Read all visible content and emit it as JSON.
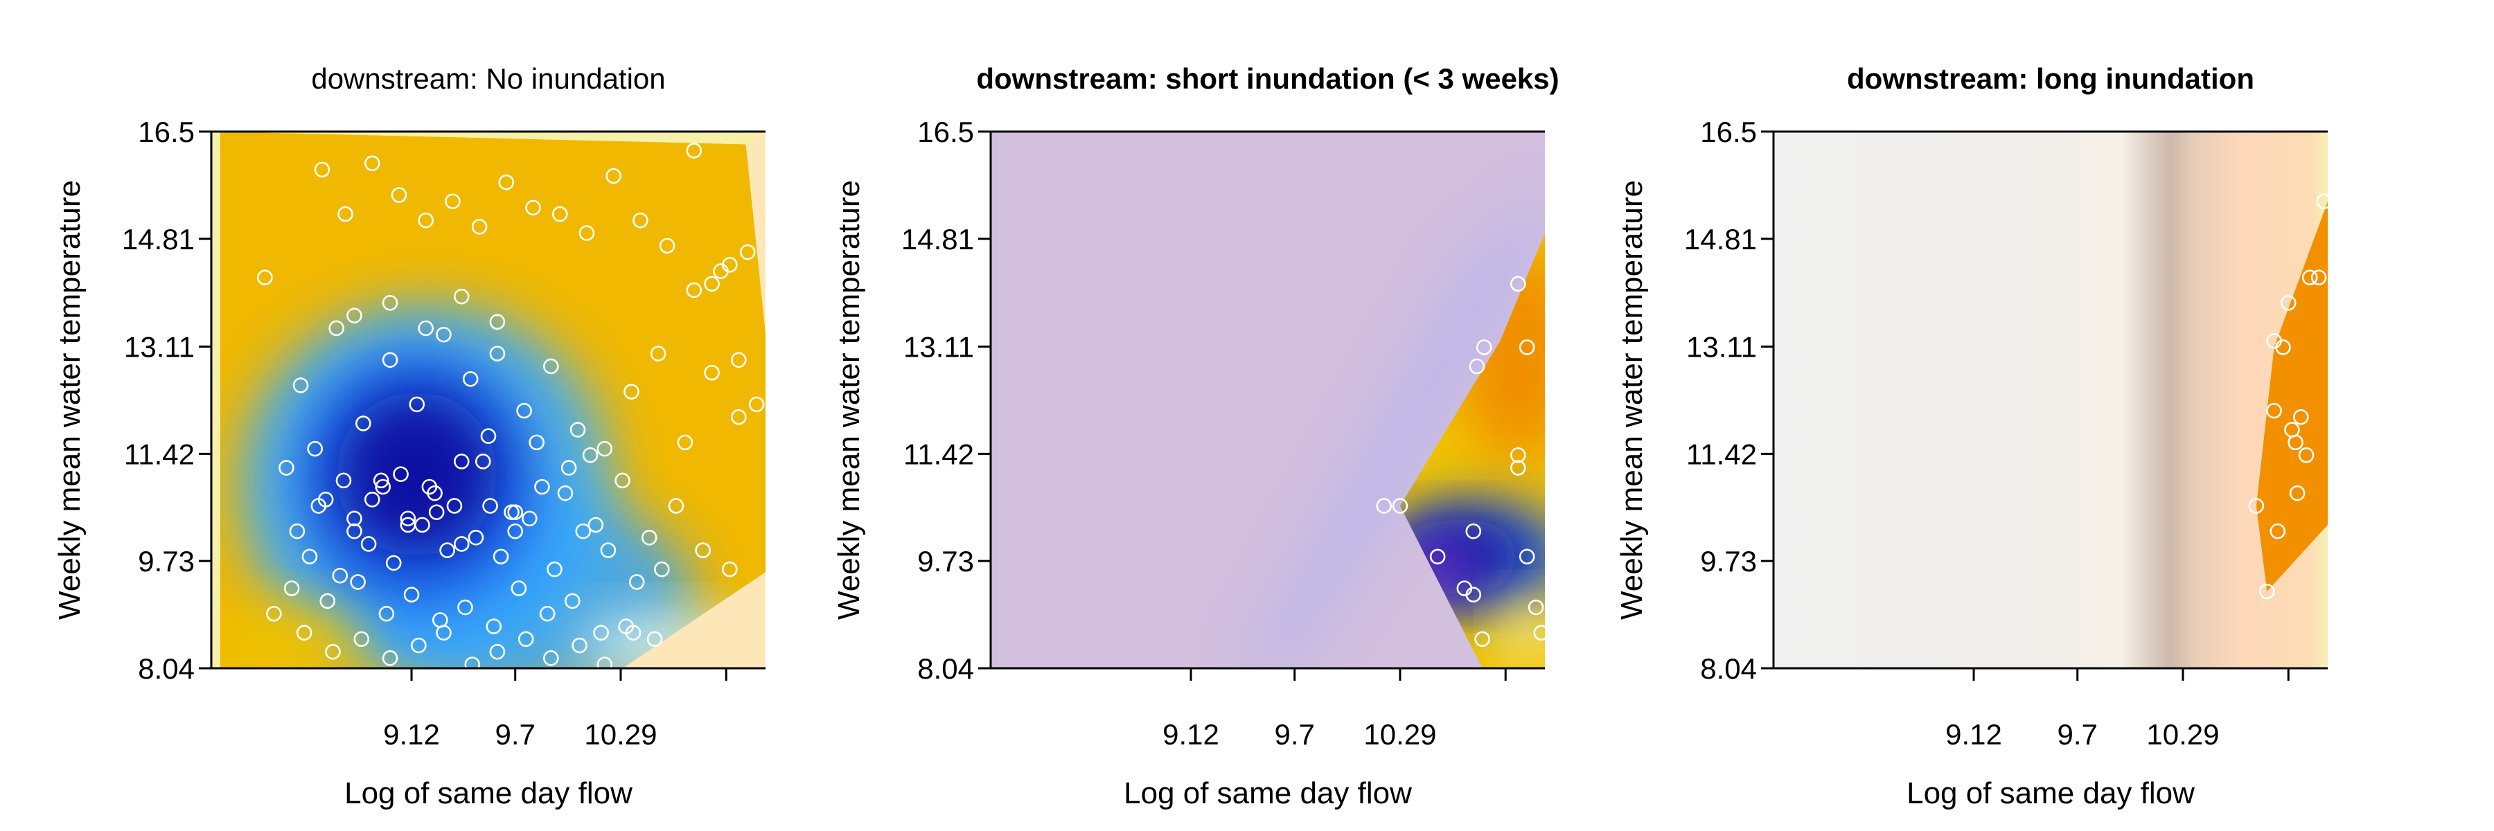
{
  "chart_data": [
    {
      "type": "heatmap",
      "title": "downstream: No inundation",
      "title_bold": false,
      "xlabel": "Log of same day flow",
      "ylabel": "Weekly mean water temperature",
      "xlim": [
        8.0,
        11.1
      ],
      "ylim": [
        8.04,
        16.5
      ],
      "x_ticks": [
        9.12,
        9.7,
        10.29,
        10.88
      ],
      "x_tick_labels": [
        "9.12",
        "9.7",
        "10.29",
        ""
      ],
      "y_ticks": [
        8.04,
        9.73,
        11.42,
        13.11,
        14.81,
        16.5
      ],
      "y_tick_labels": [
        "8.04",
        "9.73",
        "11.42",
        "13.11",
        "14.81",
        "16.5"
      ],
      "surface": {
        "background": "#f7f0a8",
        "hull_color": "#f0b800",
        "hull": [
          [
            8.05,
            16.5
          ],
          [
            10.99,
            16.3
          ],
          [
            11.23,
            9.8
          ],
          [
            10.3,
            8.04
          ],
          [
            8.05,
            8.04
          ]
        ],
        "outside_hull": [
          [
            10.3,
            8.04
          ],
          [
            11.1,
            8.04
          ],
          [
            11.1,
            16.5
          ],
          [
            10.99,
            16.3
          ],
          [
            11.23,
            9.8
          ]
        ],
        "outside_hull_color": "#fde7b8",
        "blobs": [
          {
            "cx": 9.2,
            "cy": 10.9,
            "rx": 1.05,
            "ry": 2.9,
            "color": "#3fb0ff",
            "opacity": 0.9
          },
          {
            "cx": 9.75,
            "cy": 9.2,
            "rx": 0.95,
            "ry": 1.6,
            "color": "#35a6ff",
            "opacity": 0.85
          },
          {
            "cx": 9.15,
            "cy": 11.0,
            "rx": 0.7,
            "ry": 2.1,
            "color": "#1a66e8",
            "opacity": 0.9
          },
          {
            "cx": 9.15,
            "cy": 11.1,
            "rx": 0.45,
            "ry": 1.3,
            "color": "#0a10a0",
            "opacity": 0.95
          },
          {
            "cx": 8.4,
            "cy": 8.4,
            "rx": 0.45,
            "ry": 0.6,
            "color": "#f0c300",
            "opacity": 0.9
          },
          {
            "cx": 10.55,
            "cy": 8.4,
            "rx": 0.5,
            "ry": 0.5,
            "color": "#cfeef7",
            "opacity": 0.9
          }
        ]
      },
      "points": {
        "x": [
          8.3,
          8.45,
          8.62,
          8.75,
          8.9,
          9.05,
          9.2,
          9.35,
          9.5,
          9.65,
          9.8,
          9.95,
          10.1,
          10.25,
          10.4,
          10.55,
          10.7,
          10.85,
          8.5,
          8.7,
          8.85,
          9.0,
          9.15,
          9.3,
          9.45,
          9.6,
          9.75,
          9.9,
          10.05,
          10.2,
          10.35,
          10.5,
          10.65,
          10.8,
          10.95,
          8.6,
          8.8,
          8.95,
          9.1,
          9.25,
          9.4,
          9.55,
          9.7,
          9.85,
          10.0,
          10.15,
          10.3,
          10.45,
          10.6,
          10.75,
          10.9,
          8.55,
          8.72,
          8.88,
          9.02,
          9.18,
          9.32,
          9.48,
          9.62,
          9.78,
          9.92,
          10.08,
          10.22,
          10.38,
          10.52,
          8.65,
          8.82,
          8.98,
          9.12,
          9.28,
          9.42,
          9.58,
          9.72,
          9.88,
          10.02,
          10.18,
          10.32,
          10.48,
          8.35,
          8.52,
          8.68,
          8.84,
          9.0,
          9.16,
          9.3,
          9.46,
          9.6,
          9.76,
          9.9,
          10.06,
          10.2,
          10.36,
          8.42,
          8.58,
          8.74,
          8.9,
          9.06,
          9.22,
          9.36,
          9.52,
          9.68,
          9.82,
          9.98,
          10.12,
          8.48,
          8.64,
          8.8,
          8.96,
          9.1,
          9.26,
          9.4,
          9.56,
          9.7,
          8.8,
          9.0,
          9.2,
          9.4,
          9.6,
          10.7,
          10.9,
          11.0,
          10.8,
          11.05,
          10.95
        ],
        "y": [
          14.2,
          9.3,
          15.9,
          15.2,
          16.0,
          15.5,
          15.1,
          15.4,
          15.0,
          15.7,
          15.3,
          15.2,
          14.9,
          15.8,
          15.1,
          14.7,
          16.2,
          14.3,
          12.5,
          13.4,
          11.9,
          12.9,
          12.2,
          13.3,
          12.6,
          13.0,
          12.1,
          12.8,
          11.8,
          11.5,
          12.4,
          13.0,
          11.6,
          12.7,
          12.9,
          10.6,
          10.2,
          11.0,
          10.4,
          10.8,
          11.3,
          11.7,
          10.5,
          10.9,
          11.2,
          10.3,
          11.0,
          10.1,
          10.6,
          9.9,
          9.6,
          9.8,
          9.5,
          10.0,
          9.7,
          10.3,
          9.9,
          10.1,
          9.8,
          10.4,
          9.6,
          10.2,
          9.9,
          9.4,
          9.6,
          9.1,
          9.4,
          8.9,
          9.2,
          8.8,
          9.0,
          8.7,
          9.3,
          8.9,
          9.1,
          8.6,
          8.7,
          8.5,
          8.9,
          8.6,
          8.3,
          8.5,
          8.2,
          8.4,
          8.6,
          8.1,
          8.3,
          8.5,
          8.2,
          8.4,
          8.1,
          8.6,
          11.2,
          11.5,
          11.0,
          10.7,
          11.1,
          10.9,
          10.6,
          11.3,
          10.5,
          11.6,
          10.8,
          11.4,
          10.2,
          10.7,
          10.4,
          10.9,
          10.3,
          10.5,
          10.0,
          10.6,
          10.2,
          13.6,
          13.8,
          13.4,
          13.9,
          13.5,
          14.0,
          14.4,
          14.6,
          14.1,
          12.2,
          12.0
        ]
      }
    },
    {
      "type": "heatmap",
      "title": "downstream: short inundation (< 3 weeks)",
      "title_bold": true,
      "xlabel": "Log of same day flow",
      "ylabel": "Weekly mean water temperature",
      "xlim": [
        8.0,
        11.1
      ],
      "ylim": [
        8.04,
        16.5
      ],
      "x_ticks": [
        9.12,
        9.7,
        10.29,
        10.88
      ],
      "x_tick_labels": [
        "9.12",
        "9.7",
        "10.29",
        ""
      ],
      "y_ticks": [
        8.04,
        9.73,
        11.42,
        13.11,
        14.81,
        16.5
      ],
      "y_tick_labels": [
        "8.04",
        "9.73",
        "11.42",
        "13.11",
        "14.81",
        "16.5"
      ],
      "surface": {
        "background": "#d3bfde",
        "hull_color": "#f2c400",
        "hull": [
          [
            10.29,
            10.6
          ],
          [
            10.85,
            13.2
          ],
          [
            11.1,
            14.9
          ],
          [
            11.1,
            8.04
          ],
          [
            10.75,
            8.04
          ]
        ],
        "bands": [
          {
            "path": [
              [
                9.4,
                8.04
              ],
              [
                9.9,
                10.6
              ],
              [
                10.6,
                14.3
              ],
              [
                11.1,
                15.6
              ],
              [
                11.1,
                14.9
              ],
              [
                10.85,
                13.4
              ],
              [
                10.29,
                10.6
              ],
              [
                9.7,
                8.04
              ]
            ],
            "color": "#b8b6ec",
            "opacity": 0.8
          }
        ],
        "blobs": [
          {
            "cx": 10.95,
            "cy": 13.0,
            "rx": 0.35,
            "ry": 1.7,
            "color": "#f08a00",
            "opacity": 0.9
          },
          {
            "cx": 10.72,
            "cy": 9.8,
            "rx": 0.55,
            "ry": 0.9,
            "color": "#1a5de0",
            "opacity": 0.9
          },
          {
            "cx": 10.62,
            "cy": 9.8,
            "rx": 0.35,
            "ry": 0.6,
            "color": "#0a0aa0",
            "opacity": 0.95
          },
          {
            "cx": 10.5,
            "cy": 9.6,
            "rx": 0.2,
            "ry": 0.45,
            "color": "#7a30c8",
            "opacity": 0.95
          },
          {
            "cx": 11.0,
            "cy": 8.6,
            "rx": 0.15,
            "ry": 0.5,
            "color": "#f7f0a8",
            "opacity": 0.9
          }
        ]
      },
      "points": {
        "x": [
          10.29,
          10.5,
          10.7,
          10.75,
          10.72,
          10.76,
          11.0,
          10.95,
          10.2,
          10.65,
          10.7,
          10.95,
          10.95,
          11.0,
          11.05,
          11.08
        ],
        "y": [
          10.6,
          9.8,
          10.2,
          8.5,
          12.8,
          13.1,
          13.1,
          14.1,
          10.6,
          9.3,
          9.2,
          11.4,
          11.2,
          9.8,
          9.0,
          8.6
        ]
      }
    },
    {
      "type": "heatmap",
      "title": "downstream: long inundation",
      "title_bold": true,
      "xlabel": "Log of same day flow",
      "ylabel": "Weekly mean water temperature",
      "xlim": [
        8.0,
        11.1
      ],
      "ylim": [
        8.04,
        16.5
      ],
      "x_ticks": [
        9.12,
        9.7,
        10.29,
        10.88
      ],
      "x_tick_labels": [
        "9.12",
        "9.7",
        "10.29",
        ""
      ],
      "y_ticks": [
        8.04,
        9.73,
        11.42,
        13.11,
        14.81,
        16.5
      ],
      "y_tick_labels": [
        "8.04",
        "9.73",
        "11.42",
        "13.11",
        "14.81",
        "16.5"
      ],
      "surface": {
        "gradient_stops": [
          {
            "x": 8.0,
            "color": "#f0f0f0"
          },
          {
            "x": 9.6,
            "color": "#f2eeea"
          },
          {
            "x": 9.95,
            "color": "#f6f0e6"
          },
          {
            "x": 10.1,
            "color": "#ddcfc4"
          },
          {
            "x": 10.22,
            "color": "#cdb9ab"
          },
          {
            "x": 10.35,
            "color": "#e8cdb8"
          },
          {
            "x": 10.6,
            "color": "#fcd7b9"
          },
          {
            "x": 11.0,
            "color": "#fcdcb5"
          },
          {
            "x": 11.1,
            "color": "#f6f0b5"
          }
        ],
        "hull_color": "#f29000",
        "hull": [
          [
            10.8,
            13.1
          ],
          [
            11.1,
            15.4
          ],
          [
            11.1,
            10.3
          ],
          [
            10.76,
            9.25
          ],
          [
            10.7,
            10.6
          ]
        ]
      },
      "points": {
        "x": [
          10.7,
          10.76,
          10.82,
          10.85,
          10.9,
          10.92,
          10.95,
          10.98,
          11.0,
          11.05,
          11.08,
          10.88,
          10.8,
          10.8,
          10.93
        ],
        "y": [
          10.6,
          9.25,
          10.2,
          13.1,
          11.8,
          11.6,
          12.0,
          11.4,
          14.2,
          14.2,
          15.4,
          13.8,
          13.2,
          12.1,
          10.8
        ]
      }
    }
  ]
}
